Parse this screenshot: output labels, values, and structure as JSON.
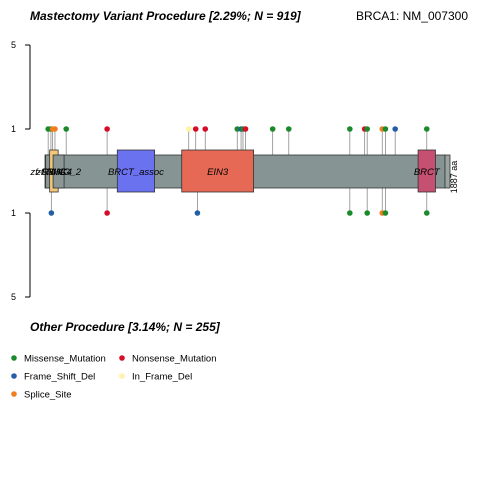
{
  "chart_data": {
    "type": "lollipop",
    "gene_label": "BRCA1: NM_007300",
    "protein_length": 1887,
    "length_label": "1887 aa",
    "top_panel": {
      "title": "Mastectomy Variant Procedure [2.29%; N = 919]",
      "yticks": [
        "5",
        "1"
      ]
    },
    "bottom_panel": {
      "title": "Other Procedure [3.14%; N = 255]",
      "yticks": [
        "1",
        "5"
      ]
    },
    "domains": [
      {
        "name": "zf-C3HC4",
        "start": 3,
        "end": 56,
        "color": "#8a9795"
      },
      {
        "name": "RING",
        "start": 22,
        "end": 62,
        "color": "#f4c77a"
      },
      {
        "name": "zf-RING_2",
        "start": 38,
        "end": 90,
        "color": "#8a9795"
      },
      {
        "name": "BRCT_assoc",
        "start": 341,
        "end": 517,
        "color": "#6b72ef"
      },
      {
        "name": "EIN3",
        "start": 645,
        "end": 984,
        "color": "#e56955"
      },
      {
        "name": "BRCT",
        "start": 1760,
        "end": 1842,
        "color": "#c55071"
      }
    ],
    "mutation_types": [
      {
        "name": "Missense_Mutation",
        "color": "#1b8a2b"
      },
      {
        "name": "Nonsense_Mutation",
        "color": "#d60d29"
      },
      {
        "name": "Frame_Shift_Del",
        "color": "#245fa6"
      },
      {
        "name": "In_Frame_Del",
        "color": "#fff3a6"
      },
      {
        "name": "Splice_Site",
        "color": "#f07d1e"
      }
    ],
    "top_mutations": [
      {
        "pos": 15,
        "count": 1,
        "type": "Missense_Mutation"
      },
      {
        "pos": 28,
        "count": 1,
        "type": "Missense_Mutation"
      },
      {
        "pos": 36,
        "count": 1,
        "type": "Splice_Site"
      },
      {
        "pos": 47,
        "count": 1,
        "type": "Splice_Site"
      },
      {
        "pos": 100,
        "count": 1,
        "type": "Missense_Mutation"
      },
      {
        "pos": 293,
        "count": 1,
        "type": "Nonsense_Mutation"
      },
      {
        "pos": 678,
        "count": 1,
        "type": "In_Frame_Del"
      },
      {
        "pos": 711,
        "count": 1,
        "type": "Nonsense_Mutation"
      },
      {
        "pos": 756,
        "count": 1,
        "type": "Nonsense_Mutation"
      },
      {
        "pos": 907,
        "count": 1,
        "type": "Missense_Mutation"
      },
      {
        "pos": 925,
        "count": 1,
        "type": "Frame_Shift_Del"
      },
      {
        "pos": 934,
        "count": 1,
        "type": "Missense_Mutation"
      },
      {
        "pos": 946,
        "count": 1,
        "type": "Nonsense_Mutation"
      },
      {
        "pos": 1074,
        "count": 1,
        "type": "Missense_Mutation"
      },
      {
        "pos": 1150,
        "count": 1,
        "type": "Missense_Mutation"
      },
      {
        "pos": 1438,
        "count": 1,
        "type": "Missense_Mutation"
      },
      {
        "pos": 1508,
        "count": 1,
        "type": "Nonsense_Mutation"
      },
      {
        "pos": 1520,
        "count": 1,
        "type": "Missense_Mutation"
      },
      {
        "pos": 1591,
        "count": 1,
        "type": "Splice_Site"
      },
      {
        "pos": 1606,
        "count": 1,
        "type": "Missense_Mutation"
      },
      {
        "pos": 1652,
        "count": 1,
        "type": "Frame_Shift_Del"
      },
      {
        "pos": 1801,
        "count": 1,
        "type": "Missense_Mutation"
      }
    ],
    "bottom_mutations": [
      {
        "pos": 30,
        "count": 1,
        "type": "Frame_Shift_Del"
      },
      {
        "pos": 293,
        "count": 1,
        "type": "Nonsense_Mutation"
      },
      {
        "pos": 719,
        "count": 1,
        "type": "Frame_Shift_Del"
      },
      {
        "pos": 1438,
        "count": 1,
        "type": "Missense_Mutation"
      },
      {
        "pos": 1520,
        "count": 1,
        "type": "Missense_Mutation"
      },
      {
        "pos": 1591,
        "count": 1,
        "type": "Splice_Site"
      },
      {
        "pos": 1606,
        "count": 1,
        "type": "Missense_Mutation"
      },
      {
        "pos": 1801,
        "count": 1,
        "type": "Missense_Mutation"
      }
    ]
  }
}
